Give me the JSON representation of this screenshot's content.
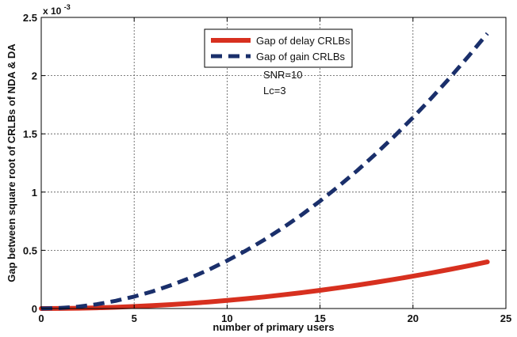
{
  "chart_data": {
    "type": "line",
    "xlabel": "number of primary users",
    "ylabel": "Gap between square root of CRLBs of NDA & DA",
    "xlim": [
      0,
      25
    ],
    "ylim": [
      0,
      0.0025
    ],
    "xticks": [
      0,
      5,
      10,
      15,
      20,
      25
    ],
    "xtick_labels": [
      "0",
      "5",
      "10",
      "15",
      "20",
      "25"
    ],
    "yticks": [
      0,
      0.0005,
      0.001,
      0.0015,
      0.002,
      0.0025
    ],
    "ytick_labels": [
      "0",
      "0.5",
      "1",
      "1.5",
      "2",
      "2.5"
    ],
    "y_multiplier": {
      "base": "x 10",
      "exponent": "-3"
    },
    "grid": true,
    "legend_position": "top-center",
    "annotations": [
      "SNR=10",
      "Lc=3"
    ],
    "series": [
      {
        "name": "Gap of delay CRLBs",
        "color": "#d7301f",
        "style": "solid",
        "x": [
          0,
          1,
          2,
          3,
          4,
          5,
          6,
          7,
          8,
          9,
          10,
          11,
          12,
          13,
          14,
          15,
          16,
          17,
          18,
          19,
          20,
          21,
          22,
          23,
          24
        ],
        "y": [
          0.0,
          7e-07,
          2.8e-06,
          6.3e-06,
          1.11e-05,
          1.74e-05,
          2.5e-05,
          3.4e-05,
          4.44e-05,
          5.63e-05,
          6.94e-05,
          8.4e-05,
          0.0001,
          0.0001174,
          0.0001361,
          0.0001563,
          0.0001778,
          0.0002007,
          0.000225,
          0.0002507,
          0.0002778,
          0.0003063,
          0.0003361,
          0.0003674,
          0.0004
        ]
      },
      {
        "name": "Gap of gain CRLBs",
        "color": "#1a2f6b",
        "style": "dashed",
        "x": [
          0,
          1,
          2,
          3,
          4,
          5,
          6,
          7,
          8,
          9,
          10,
          11,
          12,
          13,
          14,
          15,
          16,
          17,
          18,
          19,
          20,
          21,
          22,
          23,
          24
        ],
        "y": [
          0.0,
          4.1e-06,
          1.64e-05,
          3.69e-05,
          6.56e-05,
          0.0001025,
          0.0001476,
          0.0002009,
          0.0002624,
          0.0003321,
          0.00041,
          0.0004961,
          0.0005904,
          0.0006929,
          0.0008036,
          0.0009225,
          0.0010496,
          0.0011849,
          0.0013284,
          0.0014801,
          0.00164,
          0.0018081,
          0.0019844,
          0.0021689,
          0.0023616
        ]
      }
    ]
  }
}
